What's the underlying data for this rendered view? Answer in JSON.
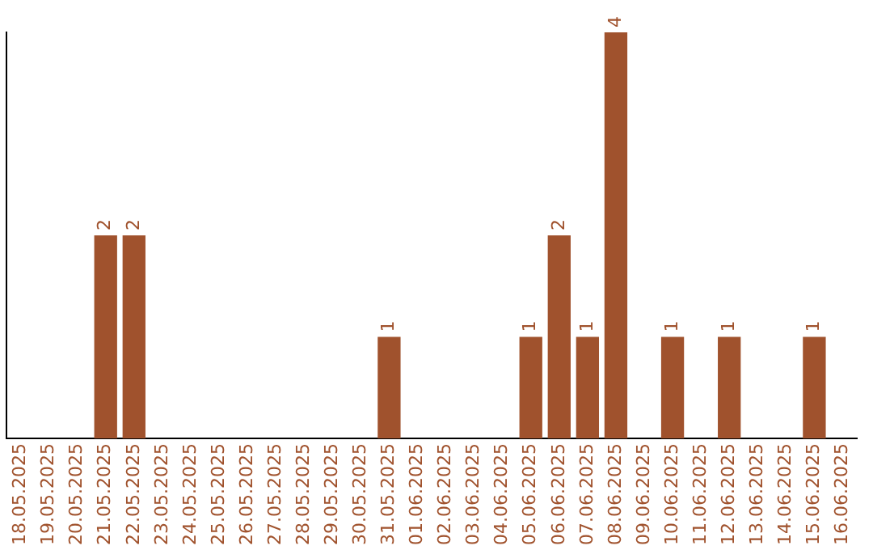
{
  "chart_data": {
    "type": "bar",
    "categories": [
      "18.05.2025",
      "19.05.2025",
      "20.05.2025",
      "21.05.2025",
      "22.05.2025",
      "23.05.2025",
      "24.05.2025",
      "25.05.2025",
      "26.05.2025",
      "27.05.2025",
      "28.05.2025",
      "29.05.2025",
      "30.05.2025",
      "31.05.2025",
      "01.06.2025",
      "02.06.2025",
      "03.06.2025",
      "04.06.2025",
      "05.06.2025",
      "06.06.2025",
      "07.06.2025",
      "08.06.2025",
      "09.06.2025",
      "10.06.2025",
      "11.06.2025",
      "12.06.2025",
      "13.06.2025",
      "14.06.2025",
      "15.06.2025",
      "16.06.2025"
    ],
    "values": [
      0,
      0,
      0,
      2,
      2,
      0,
      0,
      0,
      0,
      0,
      0,
      0,
      0,
      1,
      0,
      0,
      0,
      0,
      1,
      2,
      1,
      4,
      0,
      1,
      0,
      1,
      0,
      0,
      1,
      0
    ],
    "value_labels": [
      null,
      null,
      null,
      "2",
      "2",
      null,
      null,
      null,
      null,
      null,
      null,
      null,
      null,
      "1",
      null,
      null,
      null,
      null,
      "1",
      "2",
      "1",
      "4",
      null,
      "1",
      null,
      "1",
      null,
      null,
      "1",
      null
    ],
    "color": "#a0522d",
    "tick_labels": "x",
    "grid": false,
    "legend": false
  }
}
